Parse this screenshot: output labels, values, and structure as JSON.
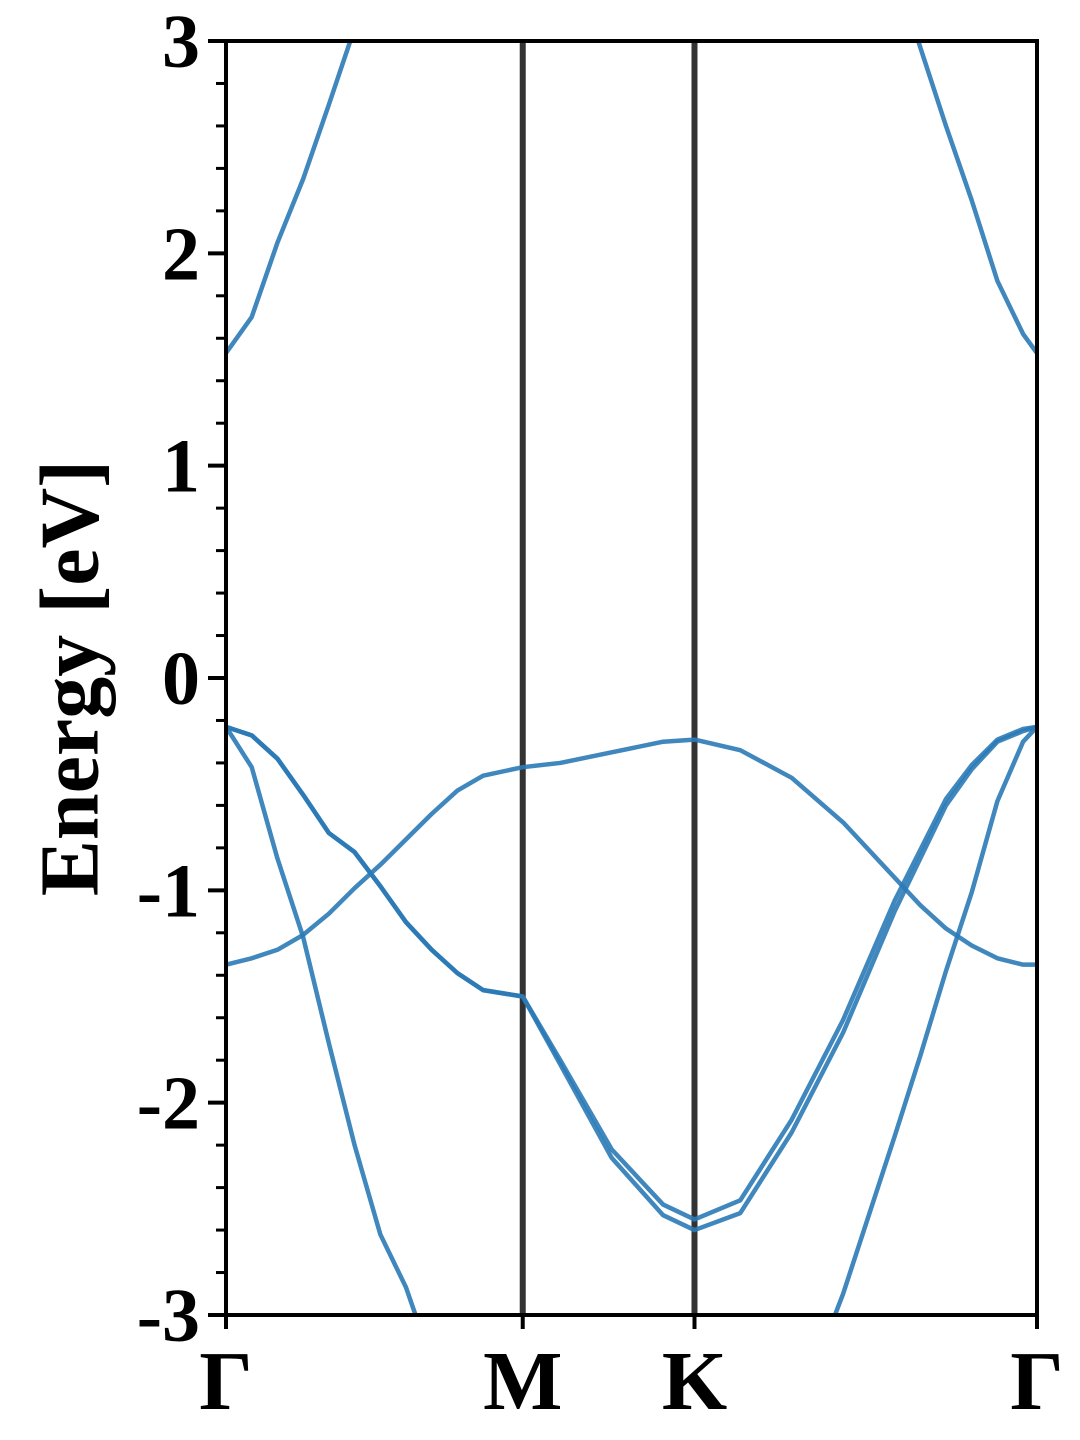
{
  "chart_data": {
    "type": "line",
    "ylabel": "Energy [eV]",
    "x": [
      0,
      0.05,
      0.1,
      0.15,
      0.2,
      0.25,
      0.3,
      0.35,
      0.4,
      0.45,
      0.5,
      0.577,
      0.65,
      0.75,
      0.85,
      0.911,
      1.0,
      1.1,
      1.2,
      1.3,
      1.35,
      1.4,
      1.45,
      1.5,
      1.55,
      1.577
    ],
    "series": [
      {
        "color": "#2a7ab6",
        "values": [
          1.53,
          1.7,
          2.05,
          2.35,
          2.7,
          3.06,
          null,
          null,
          null,
          null,
          null,
          null,
          null,
          null,
          null,
          null,
          null,
          null,
          null,
          3.35,
          2.97,
          2.6,
          2.25,
          1.87,
          1.62,
          1.53
        ]
      },
      {
        "color": "#2a7ab6",
        "values": [
          -0.23,
          -0.27,
          -0.38,
          -0.55,
          -0.73,
          -0.82,
          -0.98,
          -1.15,
          -1.28,
          -1.39,
          -1.47,
          -1.5,
          -1.8,
          -2.22,
          -2.48,
          -2.55,
          -2.46,
          -2.08,
          -1.61,
          -1.05,
          -0.81,
          -0.57,
          -0.41,
          -0.29,
          -0.24,
          -0.23
        ]
      },
      {
        "color": "#2a7ab6",
        "values": [
          -0.23,
          -0.27,
          -0.38,
          -0.55,
          -0.73,
          -0.82,
          -0.98,
          -1.15,
          -1.28,
          -1.39,
          -1.47,
          -1.5,
          -1.82,
          -2.26,
          -2.53,
          -2.6,
          -2.52,
          -2.14,
          -1.67,
          -1.1,
          -0.85,
          -0.6,
          -0.43,
          -0.3,
          -0.25,
          -0.23
        ]
      },
      {
        "color": "#2a7ab6",
        "values": [
          -1.35,
          -1.32,
          -1.28,
          -1.21,
          -1.11,
          -0.99,
          -0.88,
          -0.76,
          -0.64,
          -0.53,
          -0.46,
          -0.42,
          -0.4,
          -0.35,
          -0.3,
          -0.29,
          -0.34,
          -0.47,
          -0.68,
          -0.94,
          -1.07,
          -1.18,
          -1.26,
          -1.32,
          -1.35,
          -1.35
        ]
      },
      {
        "color": "#2a7ab6",
        "values": [
          -0.23,
          -0.42,
          -0.85,
          -1.22,
          -1.72,
          -2.2,
          -2.62,
          -2.87,
          -3.22,
          null,
          null,
          null,
          null,
          null,
          null,
          null,
          null,
          -3.53,
          -2.9,
          -2.16,
          -1.78,
          -1.38,
          -1.01,
          -0.58,
          -0.3,
          -0.23
        ]
      }
    ],
    "xlim": [
      0,
      1.577
    ],
    "xticks": [
      {
        "value": 0,
        "label": "Γ"
      },
      {
        "value": 0.577,
        "label": "M"
      },
      {
        "value": 0.911,
        "label": "K"
      },
      {
        "value": 1.577,
        "label": "Γ"
      }
    ],
    "ylim": [
      -3,
      3
    ],
    "yticks": [
      -3,
      -2,
      -1,
      0,
      1,
      2,
      3
    ],
    "yminor_per_major": 4,
    "vline_color": "#333333"
  }
}
